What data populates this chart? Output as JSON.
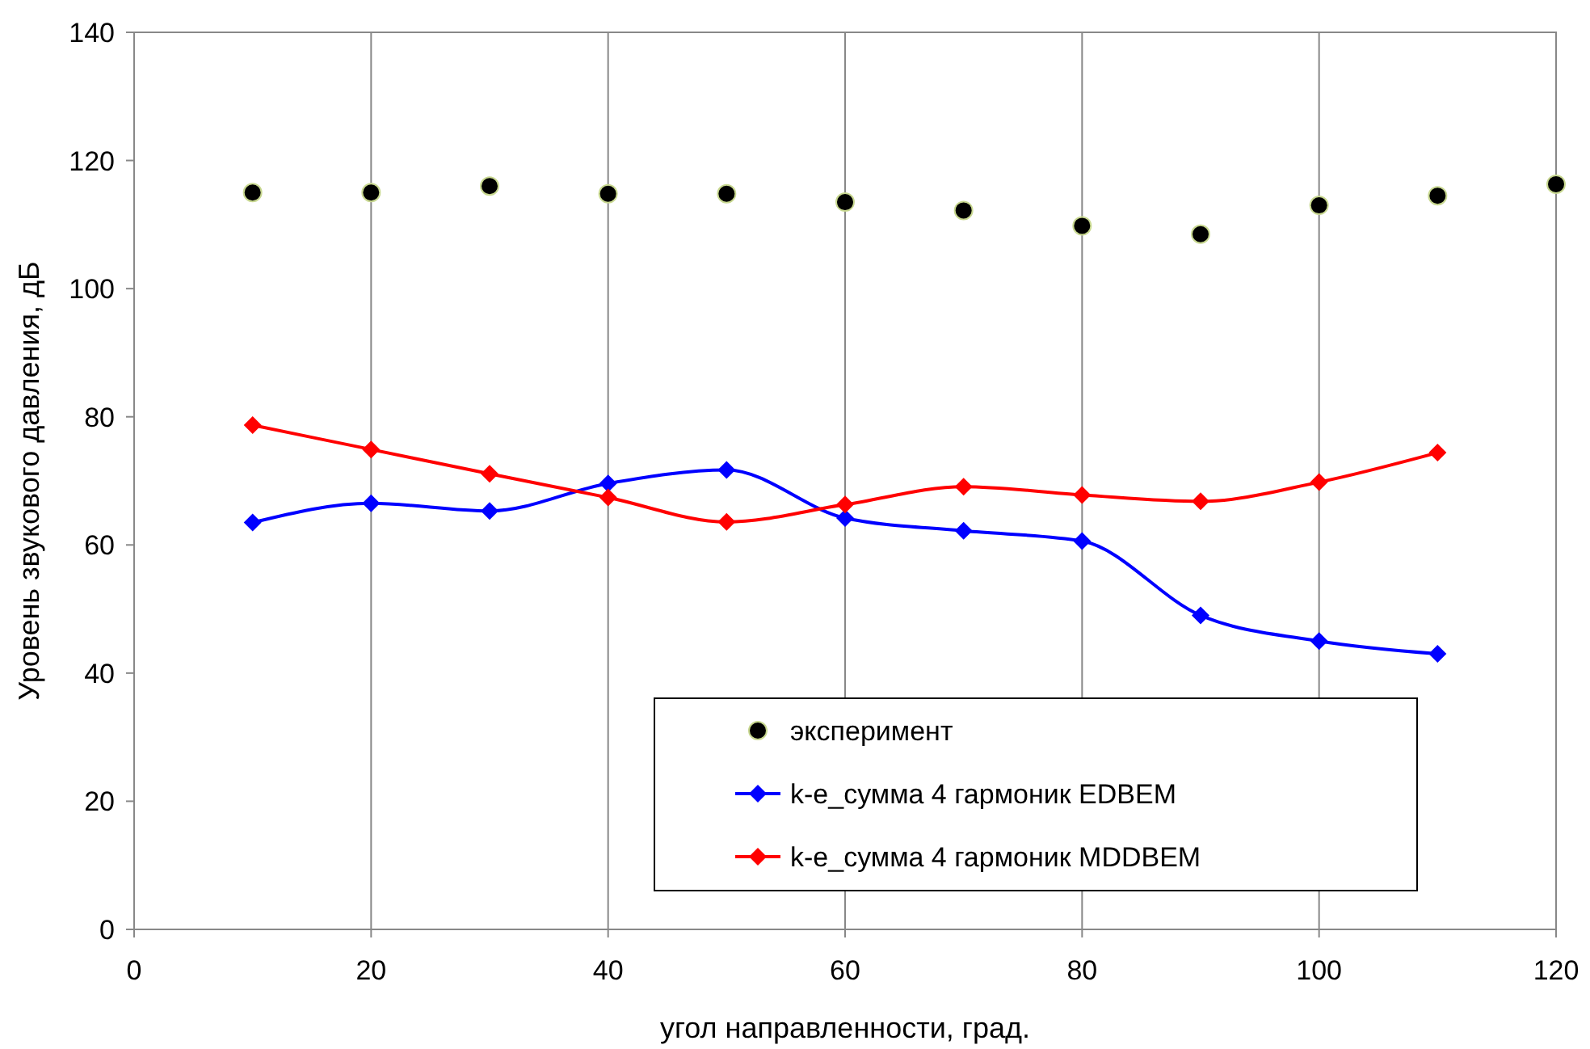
{
  "chart_data": {
    "type": "line",
    "xlabel": "угол направленности, град.",
    "ylabel": "Уровень звукового давления, дБ",
    "xlim": [
      0,
      120
    ],
    "xticks": [
      0,
      20,
      40,
      60,
      80,
      100,
      120
    ],
    "ylim": [
      0,
      140
    ],
    "yticks": [
      0,
      20,
      40,
      60,
      80,
      100,
      120,
      140
    ],
    "grid": "x",
    "legend": "bottom right",
    "series": [
      {
        "name": "эксперимент",
        "type": "scatter",
        "marker": "circle",
        "color": "#000000",
        "x": [
          10,
          20,
          30,
          40,
          50,
          60,
          70,
          80,
          90,
          100,
          110,
          120
        ],
        "values": [
          115,
          115,
          116,
          114.8,
          114.8,
          113.5,
          112.2,
          109.8,
          108.5,
          113,
          114.5,
          116.3
        ]
      },
      {
        "name": "k-e_сумма 4 гармоник EDBEM",
        "marker": "diamond",
        "color": "#0000ff",
        "x": [
          10,
          20,
          30,
          40,
          50,
          60,
          70,
          80,
          90,
          100,
          110
        ],
        "values": [
          63.5,
          66.5,
          65.3,
          69.6,
          71.7,
          64.2,
          62.2,
          60.6,
          49,
          45,
          43
        ]
      },
      {
        "name": "k-e_сумма 4 гармоник MDDBEM",
        "marker": "diamond",
        "color": "#ff0000",
        "x": [
          10,
          20,
          30,
          40,
          50,
          60,
          70,
          80,
          90,
          100,
          110
        ],
        "values": [
          78.7,
          74.9,
          71.1,
          67.4,
          63.6,
          66.3,
          69.1,
          67.8,
          66.8,
          69.8,
          74.4
        ]
      }
    ]
  }
}
